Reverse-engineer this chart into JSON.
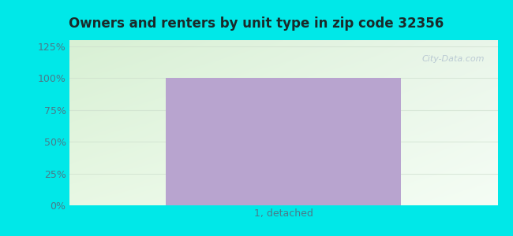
{
  "title": "Owners and renters by unit type in zip code 32356",
  "categories": [
    "1, detached"
  ],
  "values": [
    100
  ],
  "bar_color": "#b8a4cf",
  "outer_bg_color": "#00e8e8",
  "grad_color_topleft": "#d8f0d4",
  "grad_color_topright": "#eaf6ea",
  "grad_color_bottomleft": "#e8f8e4",
  "grad_color_bottomright": "#f5fdf5",
  "yticks": [
    0,
    25,
    50,
    75,
    100,
    125
  ],
  "ylim": [
    0,
    130
  ],
  "title_fontsize": 12,
  "tick_fontsize": 9,
  "xlabel_fontsize": 9,
  "watermark": "City-Data.com",
  "bar_width": 0.55,
  "tick_color": "#4a7a8a",
  "title_color": "#1a2a2a",
  "gridline_color": "#ccddcc",
  "gridline_alpha": 0.6
}
